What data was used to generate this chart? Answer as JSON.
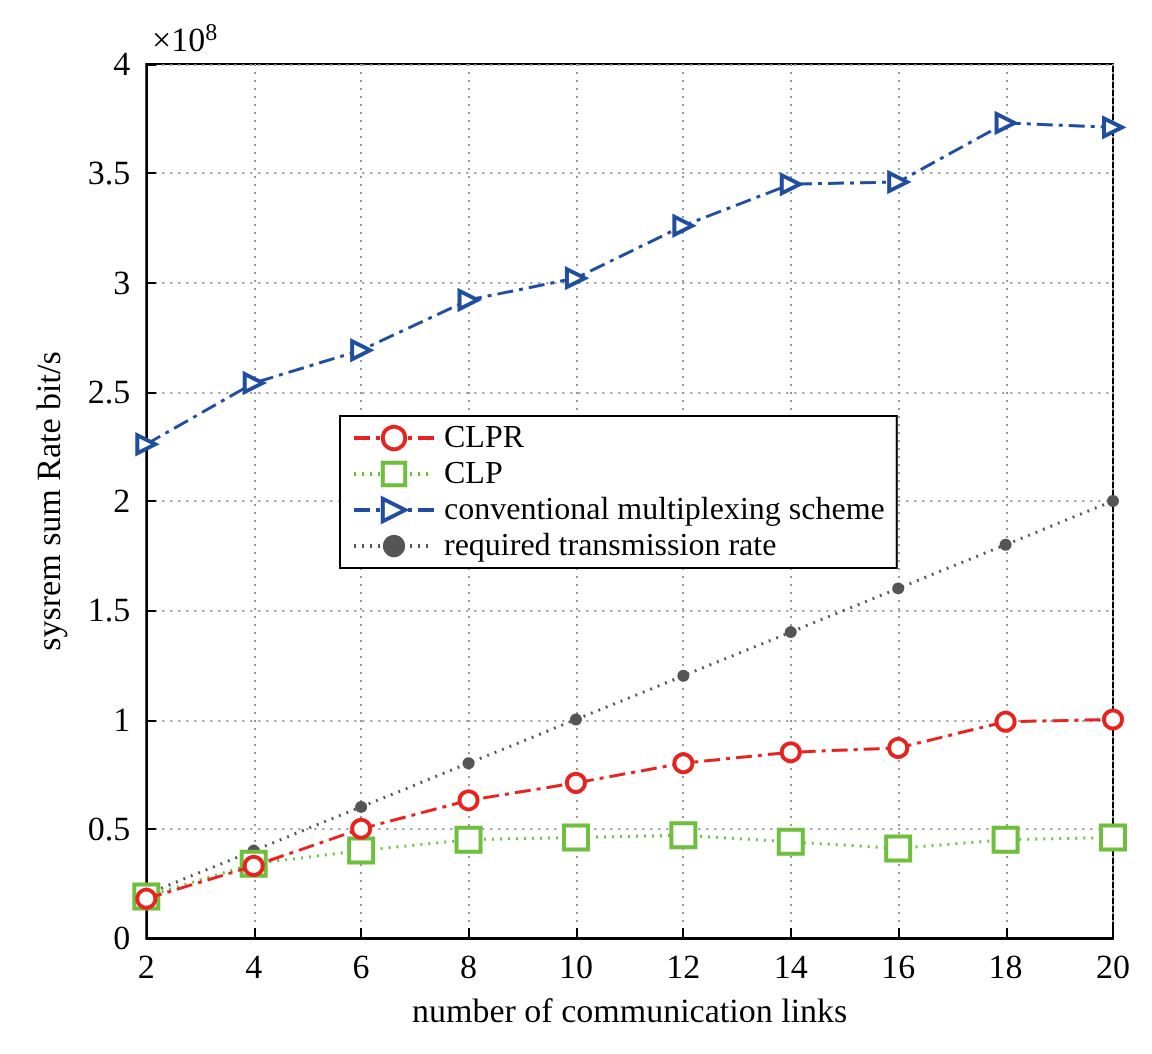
{
  "chart_data": {
    "type": "line",
    "xlabel": "number of communication links",
    "ylabel": "sysrem sum Rate bit/s",
    "annotations": [
      "×10$^{8}$"
    ],
    "x": [
      2,
      4,
      6,
      8,
      10,
      12,
      14,
      16,
      18,
      20
    ],
    "series": [
      {
        "name": "CLPR",
        "color": "#e8231f",
        "marker": "circle",
        "line_style": "dashed",
        "values": [
          0.18,
          0.33,
          0.5,
          0.63,
          0.71,
          0.8,
          0.85,
          0.87,
          0.99,
          1.0
        ]
      },
      {
        "name": "CLP",
        "color": "#6fbf3f",
        "marker": "square",
        "line_style": "dotted",
        "values": [
          0.19,
          0.34,
          0.4,
          0.45,
          0.46,
          0.47,
          0.44,
          0.41,
          0.45,
          0.46
        ]
      },
      {
        "name": "conventional multiplexing scheme",
        "color": "#1f4ea0",
        "marker": "triangle",
        "line_style": "dashed",
        "values": [
          2.26,
          2.54,
          2.69,
          2.92,
          3.02,
          3.26,
          3.45,
          3.46,
          3.73,
          3.71
        ]
      },
      {
        "name": "required transmission rate",
        "color": "#555555",
        "marker": "circle",
        "line_style": "dotted",
        "values": [
          0.2,
          0.4,
          0.6,
          0.8,
          1.0,
          1.2,
          1.4,
          1.6,
          1.8,
          2.0
        ]
      }
    ],
    "xlim": [
      2,
      20
    ],
    "xticks": [
      2,
      4,
      6,
      8,
      10,
      12,
      14,
      16,
      18,
      20
    ],
    "ylim": [
      0,
      4
    ],
    "yticks": [
      0,
      0.5,
      1,
      1.5,
      2,
      2.5,
      3,
      3.5,
      4
    ],
    "grid": true,
    "legend": "left"
  }
}
